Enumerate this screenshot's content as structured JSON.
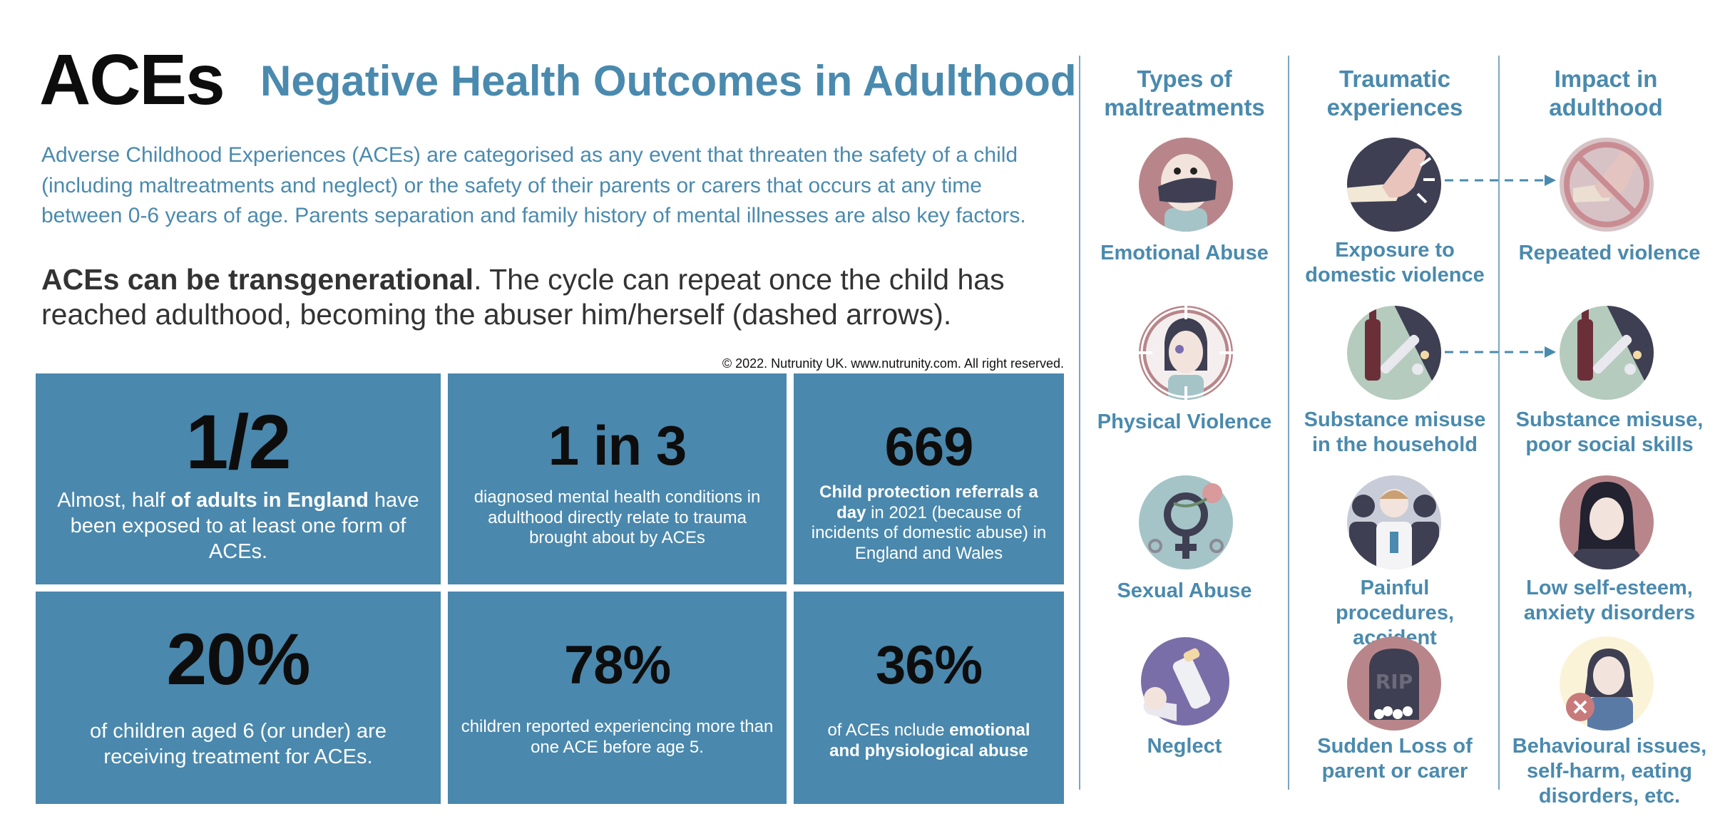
{
  "header": {
    "title": "ACEs",
    "subtitle": "Negative Health Outcomes in Adulthood"
  },
  "intro": "Adverse Childhood Experiences (ACEs) are categorised as any event that threaten the safety of a child (including maltreatments and neglect) or the safety of their parents or carers that occurs at any time between 0-6 years of age. Parents separation and family history of mental illnesses are also key factors.",
  "transgenerational": {
    "bold": "ACEs can be transgenerational",
    "rest": ". The cycle can repeat once the child has reached adulthood, becoming the abuser him/herself (dashed arrows)."
  },
  "copyright": "© 2022. Nutrunity UK. www.nutrunity.com. All right reserved.",
  "stats": {
    "s1": {
      "big": "1/2",
      "pre": "Almost, half ",
      "bold": "of adults in England",
      "post": " have been exposed to at least one form of ACEs."
    },
    "s2": {
      "big": "1 in 3",
      "text": "diagnosed mental health conditions in adulthood directly relate to trauma brought about by ACEs"
    },
    "s3": {
      "big": "669",
      "bold1": "Child protection referrals a day",
      "post": " in 2021 (because of incidents of domestic abuse) in England and Wales"
    },
    "s4": {
      "big": "20%",
      "text": "of children aged 6 (or under) are receiving treatment for ACEs."
    },
    "s5": {
      "big": "78%",
      "text": "children reported experiencing more than one ACE before age 5."
    },
    "s6": {
      "big": "36%",
      "pre": "of ACEs nclude ",
      "bold": "emotional and physiological abuse"
    }
  },
  "columns": {
    "types": "Types of maltreatments",
    "traumatic": "Traumatic experiences",
    "impact": "Impact in adulthood"
  },
  "rows": [
    {
      "type": "Emotional Abuse",
      "trauma": "Exposure to domestic violence",
      "impact": "Repeated violence"
    },
    {
      "type": "Physical Violence",
      "trauma": "Substance misuse in the household",
      "impact": "Substance misuse, poor social skills"
    },
    {
      "type": "Sexual Abuse",
      "trauma": "Painful procedures, accident",
      "impact": "Low self-esteem, anxiety disorders"
    },
    {
      "type": "Neglect",
      "trauma": "Sudden Loss of parent or carer",
      "impact": "Behavioural issues, self-harm, eating disorders, etc."
    }
  ],
  "icons": {
    "rip": "RIP"
  },
  "colors": {
    "accent": "#4a8aae",
    "panel": "#4a88ad",
    "icon_dark": "#3e3f52",
    "icon_pink": "#b8868a"
  }
}
